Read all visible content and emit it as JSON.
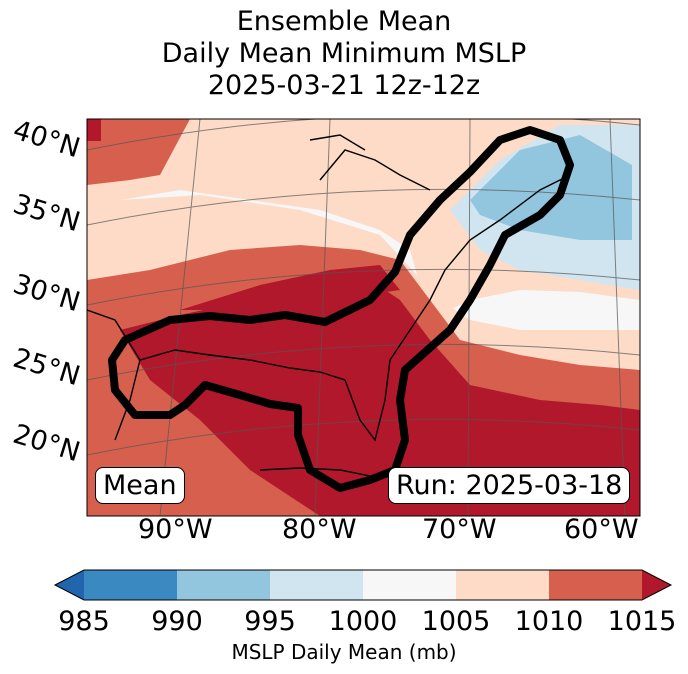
{
  "title": {
    "line1": "Ensemble Mean",
    "line2": "Daily Mean Minimum MSLP",
    "line3": "2025-03-21 12z-12z"
  },
  "map": {
    "lat_labels": [
      "40°N",
      "35°N",
      "30°N",
      "25°N",
      "20°N"
    ],
    "lon_labels": [
      "90°W",
      "80°W",
      "70°W",
      "60°W"
    ],
    "mean_box": "Mean",
    "run_box": "Run: 2025-03-18"
  },
  "colorbar": {
    "ticks": [
      "985",
      "990",
      "995",
      "1000",
      "1005",
      "1010",
      "1015"
    ],
    "label": "MSLP Daily Mean (mb)",
    "colors": [
      "#2166ac",
      "#3a89c0",
      "#92c5de",
      "#d1e5f0",
      "#f7f7f7",
      "#fddbc7",
      "#d6604d",
      "#b2182b"
    ]
  },
  "chart_data": {
    "type": "heatmap",
    "title": "Ensemble Mean Daily Mean Minimum MSLP 2025-03-21 12z-12z",
    "variable": "MSLP Daily Mean (mb)",
    "levels": [
      985,
      990,
      995,
      1000,
      1005,
      1010,
      1015
    ],
    "extend": "both",
    "region_lat": [
      20,
      40
    ],
    "region_lon": [
      -90,
      -60
    ],
    "annotation": "Mean",
    "run": "Run: 2025-03-18"
  }
}
